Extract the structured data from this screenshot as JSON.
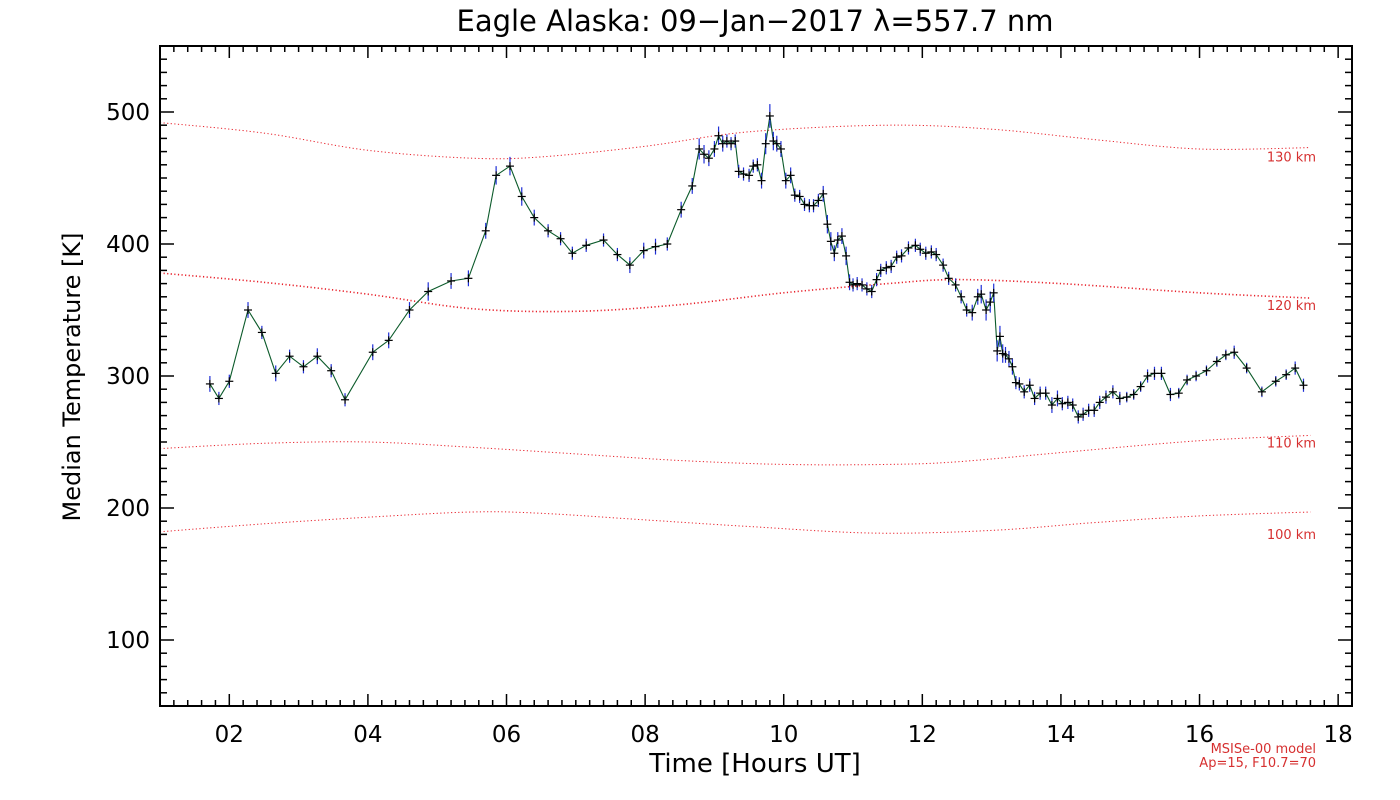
{
  "colors": {
    "data_line": "#0b5a2a",
    "data_marker": "#000000",
    "error_bar": "#1f2fd6",
    "model_line": "#e8202a",
    "model_text": "#d63030",
    "axis": "#000000"
  },
  "chart_data": {
    "type": "line",
    "title": "Eagle Alaska: 09−Jan−2017 λ=557.7 nm",
    "xlabel": "Time [Hours UT]",
    "ylabel": "Median Temperature [K]",
    "xlim": [
      1.0,
      18.2
    ],
    "ylim": [
      50,
      550
    ],
    "xticks": [
      2,
      4,
      6,
      8,
      10,
      12,
      14,
      16,
      18
    ],
    "xtick_labels": [
      "02",
      "04",
      "06",
      "08",
      "10",
      "12",
      "14",
      "16",
      "18"
    ],
    "yticks": [
      100,
      200,
      300,
      400,
      500
    ],
    "ytick_labels": [
      "100",
      "200",
      "300",
      "400",
      "500"
    ],
    "grid": false,
    "series": [
      {
        "x": [
          1.72,
          1.85,
          2.0,
          2.27,
          2.47,
          2.67,
          2.87,
          3.07,
          3.27,
          3.47,
          3.67,
          4.07,
          4.3,
          4.6,
          4.87,
          5.2,
          5.45,
          5.7,
          5.85,
          6.05,
          6.22,
          6.4,
          6.6,
          6.78,
          6.95,
          7.15,
          7.4,
          7.6,
          7.78,
          7.98,
          8.15,
          8.32,
          8.52,
          8.68,
          8.78,
          8.85,
          8.92,
          9.0,
          9.06,
          9.12,
          9.18,
          9.24,
          9.3,
          9.35,
          9.42,
          9.5,
          9.56,
          9.62,
          9.68,
          9.74,
          9.8,
          9.85,
          9.9,
          9.96,
          10.03,
          10.1,
          10.16,
          10.23,
          10.3,
          10.37,
          10.43,
          10.5,
          10.57,
          10.63,
          10.68,
          10.73,
          10.78,
          10.84,
          10.9,
          10.95,
          11.0,
          11.06,
          11.13,
          11.2,
          11.27,
          11.34,
          11.4,
          11.48,
          11.55,
          11.63,
          11.7,
          11.8,
          11.9,
          11.97,
          12.05,
          12.13,
          12.2,
          12.3,
          12.38,
          12.48,
          12.56,
          12.64,
          12.72,
          12.8,
          12.85,
          12.92,
          12.98,
          13.03,
          13.08,
          13.12,
          13.16,
          13.2,
          13.25,
          13.3,
          13.35,
          13.4,
          13.47,
          13.55,
          13.62,
          13.7,
          13.78,
          13.87,
          13.95,
          14.02,
          14.1,
          14.17,
          14.25,
          14.32,
          14.4,
          14.48,
          14.56,
          14.65,
          14.75,
          14.85,
          14.95,
          15.05,
          15.15,
          15.25,
          15.35,
          15.45,
          15.58,
          15.7,
          15.82,
          15.95,
          16.1,
          16.25,
          16.38,
          16.5,
          16.68,
          16.9,
          17.1,
          17.25,
          17.38,
          17.5
        ],
        "y": [
          294,
          283,
          296,
          350,
          333,
          302,
          315,
          307,
          315,
          304,
          282,
          318,
          327,
          350,
          364,
          372,
          374,
          410,
          452,
          459,
          436,
          420,
          410,
          404,
          393,
          399,
          403,
          392,
          384,
          395,
          398,
          400,
          426,
          444,
          472,
          468,
          465,
          472,
          482,
          476,
          478,
          476,
          478,
          455,
          453,
          452,
          459,
          460,
          448,
          476,
          497,
          478,
          476,
          472,
          448,
          452,
          437,
          436,
          430,
          429,
          429,
          433,
          438,
          415,
          402,
          393,
          403,
          406,
          391,
          371,
          369,
          370,
          369,
          366,
          364,
          373,
          380,
          382,
          383,
          390,
          391,
          397,
          399,
          396,
          393,
          394,
          392,
          384,
          374,
          369,
          360,
          350,
          348,
          360,
          362,
          350,
          356,
          363,
          319,
          330,
          317,
          316,
          313,
          307,
          295,
          294,
          288,
          293,
          283,
          287,
          287,
          278,
          283,
          279,
          280,
          278,
          269,
          271,
          274,
          274,
          280,
          284,
          288,
          283,
          284,
          286,
          292,
          300,
          302,
          302,
          286,
          287,
          297,
          300,
          304,
          311,
          316,
          318,
          306,
          288,
          296,
          301,
          306,
          293
        ],
        "yerr": [
          6,
          5,
          5,
          6,
          5,
          6,
          5,
          5,
          6,
          5,
          5,
          6,
          6,
          6,
          7,
          6,
          6,
          6,
          7,
          7,
          7,
          6,
          5,
          5,
          5,
          5,
          5,
          5,
          6,
          6,
          6,
          5,
          6,
          6,
          8,
          7,
          6,
          6,
          7,
          6,
          5,
          5,
          5,
          5,
          5,
          5,
          5,
          5,
          6,
          8,
          9,
          7,
          6,
          6,
          6,
          6,
          5,
          5,
          5,
          5,
          5,
          5,
          6,
          7,
          7,
          6,
          6,
          6,
          7,
          6,
          5,
          5,
          5,
          5,
          5,
          5,
          5,
          5,
          5,
          5,
          5,
          5,
          5,
          5,
          5,
          5,
          5,
          5,
          5,
          5,
          5,
          5,
          6,
          6,
          7,
          8,
          8,
          7,
          8,
          8,
          7,
          6,
          6,
          6,
          5,
          5,
          5,
          5,
          5,
          5,
          5,
          6,
          6,
          5,
          5,
          5,
          5,
          5,
          5,
          5,
          5,
          5,
          5,
          5,
          4,
          4,
          4,
          5,
          5,
          5,
          5,
          4,
          4,
          4,
          4,
          4,
          4,
          5,
          4,
          4,
          4,
          4,
          5,
          5
        ]
      }
    ],
    "model_curves": [
      {
        "label": "130 km",
        "x": [
          1.0,
          2.5,
          4.0,
          5.5,
          6.5,
          8.0,
          9.5,
          11.5,
          13.0,
          14.5,
          16.0,
          17.6
        ],
        "y": [
          492,
          484,
          471,
          465,
          466,
          474,
          485,
          490,
          487,
          479,
          472,
          473
        ]
      },
      {
        "label": "120 km",
        "x": [
          1.0,
          2.5,
          4.0,
          5.5,
          7.0,
          8.5,
          10.0,
          11.5,
          12.5,
          14.0,
          16.0,
          17.6
        ],
        "y": [
          378,
          371,
          362,
          351,
          349,
          354,
          363,
          370,
          373,
          370,
          363,
          359
        ]
      },
      {
        "label": "110 km",
        "x": [
          1.0,
          2.5,
          4.0,
          5.5,
          7.0,
          8.5,
          10.0,
          11.5,
          12.5,
          14.0,
          16.0,
          17.6
        ],
        "y": [
          245,
          249,
          250,
          246,
          241,
          236,
          233,
          233,
          235,
          242,
          251,
          255
        ]
      },
      {
        "label": "100 km",
        "x": [
          1.0,
          2.5,
          4.0,
          5.5,
          6.5,
          8.0,
          9.5,
          11.3,
          13.0,
          14.5,
          16.0,
          17.6
        ],
        "y": [
          182,
          188,
          193,
          197,
          196,
          191,
          186,
          181,
          183,
          189,
          194,
          197
        ]
      }
    ],
    "model_note": [
      "MSISe-00 model",
      "Ap=15, F10.7=70"
    ]
  }
}
